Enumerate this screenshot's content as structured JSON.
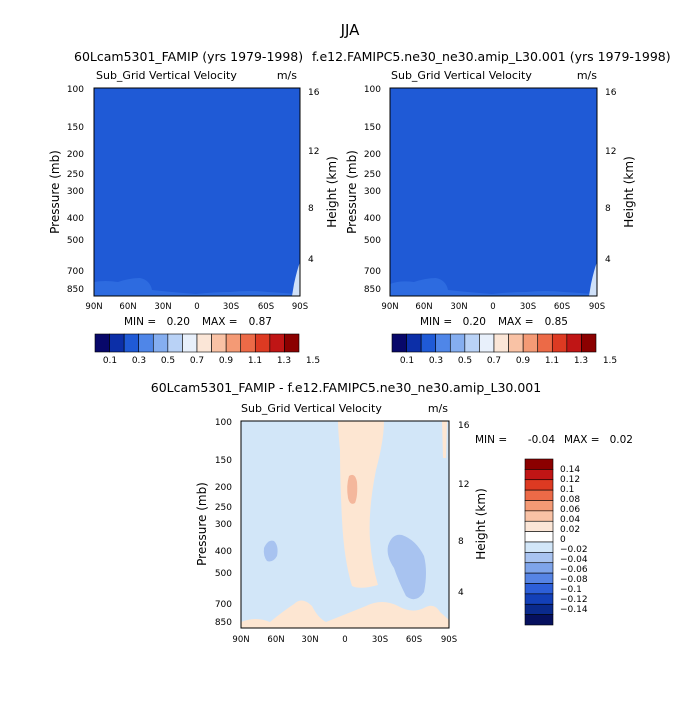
{
  "page": {
    "season_title": "JJA"
  },
  "colors": {
    "base_field": "#1f5ad6",
    "base_band": "#2d6be0",
    "diff_field": "#d2e6f8",
    "diff_pos": "#fde6d2",
    "diff_pos2": "#f4b79c",
    "diff_neg": "#a8c3f0"
  },
  "chart_data": [
    {
      "type": "heatmap",
      "title": "60Lcam5301_FAMIP (yrs 1979-1998)",
      "subtitle_left": "Sub_Grid Vertical Velocity",
      "subtitle_right": "m/s",
      "ylabel": "Pressure (mb)",
      "y2label": "Height (km)",
      "xticks": [
        "90N",
        "60N",
        "30N",
        "0",
        "30S",
        "60S",
        "90S"
      ],
      "yticks": [
        "100",
        "150",
        "200",
        "250",
        "300",
        "400",
        "500",
        "700",
        "850"
      ],
      "y2ticks": [
        "16",
        "12",
        "8",
        "4"
      ],
      "min_label": "MIN =",
      "min_value": "0.20",
      "max_label": "MAX =",
      "max_value": "0.87",
      "colorbar_labels": [
        "0.1",
        "0.3",
        "0.5",
        "0.7",
        "0.9",
        "1.1",
        "1.3",
        "1.5"
      ],
      "colorbar_colors": [
        "#08086a",
        "#0c2fa8",
        "#1f5ad6",
        "#4f86e8",
        "#85aef0",
        "#b9d2f6",
        "#e8f0fb",
        "#fbe6d7",
        "#f9c2a5",
        "#f49a75",
        "#ec6a47",
        "#dd3a22",
        "#c01515",
        "#8b0000"
      ]
    },
    {
      "type": "heatmap",
      "title": "f.e12.FAMIPC5.ne30_ne30.amip_L30.001 (yrs 1979-1998)",
      "subtitle_left": "Sub_Grid Vertical Velocity",
      "subtitle_right": "m/s",
      "ylabel": "Pressure (mb)",
      "y2label": "Height (km)",
      "xticks": [
        "90N",
        "60N",
        "30N",
        "0",
        "30S",
        "60S",
        "90S"
      ],
      "yticks": [
        "100",
        "150",
        "200",
        "250",
        "300",
        "400",
        "500",
        "700",
        "850"
      ],
      "y2ticks": [
        "16",
        "12",
        "8",
        "4"
      ],
      "min_label": "MIN =",
      "min_value": "0.20",
      "max_label": "MAX =",
      "max_value": "0.85",
      "colorbar_labels": [
        "0.1",
        "0.3",
        "0.5",
        "0.7",
        "0.9",
        "1.1",
        "1.3",
        "1.5"
      ],
      "colorbar_colors": [
        "#08086a",
        "#0c2fa8",
        "#1f5ad6",
        "#4f86e8",
        "#85aef0",
        "#b9d2f6",
        "#e8f0fb",
        "#fbe6d7",
        "#f9c2a5",
        "#f49a75",
        "#ec6a47",
        "#dd3a22",
        "#c01515",
        "#8b0000"
      ]
    },
    {
      "type": "heatmap",
      "title": "60Lcam5301_FAMIP - f.e12.FAMIPC5.ne30_ne30.amip_L30.001",
      "subtitle_left": "Sub_Grid Vertical Velocity",
      "subtitle_right": "m/s",
      "ylabel": "Pressure (mb)",
      "y2label": "Height (km)",
      "xticks": [
        "90N",
        "60N",
        "30N",
        "0",
        "30S",
        "60S",
        "90S"
      ],
      "yticks": [
        "100",
        "150",
        "200",
        "250",
        "300",
        "400",
        "500",
        "700",
        "850"
      ],
      "y2ticks": [
        "16",
        "12",
        "8",
        "4"
      ],
      "min_label": "MIN =",
      "min_value": "-0.04",
      "max_label": "MAX =",
      "max_value": "0.02",
      "colorbar_labels": [
        "0.14",
        "0.12",
        "0.1",
        "0.08",
        "0.06",
        "0.04",
        "0.02",
        "0",
        "−0.02",
        "−0.04",
        "−0.06",
        "−0.08",
        "−0.1",
        "−0.12",
        "−0.14"
      ],
      "colorbar_colors": [
        "#8b0000",
        "#c01515",
        "#dd3a22",
        "#ec6a47",
        "#f49a75",
        "#f9c2a5",
        "#fbe6d7",
        "#ffffff",
        "#d2e6f8",
        "#a8c3f0",
        "#7ea4ea",
        "#5684e4",
        "#2d5fd8",
        "#1340b8",
        "#0a2a8c",
        "#06105e"
      ]
    }
  ]
}
